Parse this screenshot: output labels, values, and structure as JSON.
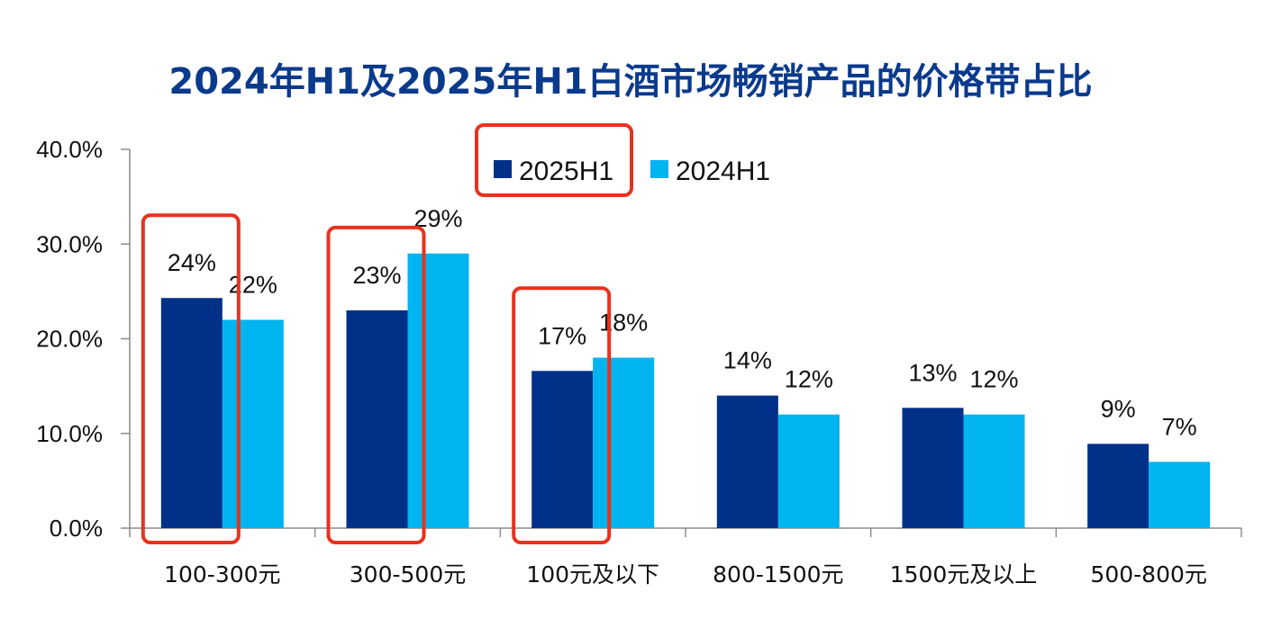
{
  "chart_data": {
    "type": "bar",
    "title": "2024年H1及2025年H1白酒市场畅销产品的价格带占比",
    "xlabel": "",
    "ylabel": "",
    "ylim": [
      0,
      40
    ],
    "yticks": [
      "0.0%",
      "10.0%",
      "20.0%",
      "30.0%",
      "40.0%"
    ],
    "ytick_values": [
      0,
      10,
      20,
      30,
      40
    ],
    "categories": [
      "100-300元",
      "300-500元",
      "100元及以下",
      "800-1500元",
      "1500元及以上",
      "500-800元"
    ],
    "series": [
      {
        "name": "2025H1",
        "color": "#003087",
        "values": [
          24.3,
          23.0,
          16.6,
          14.0,
          12.7,
          8.9
        ],
        "labels": [
          "24%",
          "23%",
          "17%",
          "14%",
          "13%",
          "9%"
        ]
      },
      {
        "name": "2024H1",
        "color": "#00b4ef",
        "values": [
          22.0,
          29.0,
          18.0,
          12.0,
          12.0,
          7.0
        ],
        "labels": [
          "22%",
          "29%",
          "18%",
          "12%",
          "12%",
          "7%"
        ]
      }
    ],
    "legend_position": "top-center",
    "grid": false,
    "highlight_color": "#e8321e",
    "highlighted_categories": [
      "100-300元",
      "300-500元",
      "100元及以下"
    ],
    "highlighted_legend_entry": "2025H1"
  }
}
